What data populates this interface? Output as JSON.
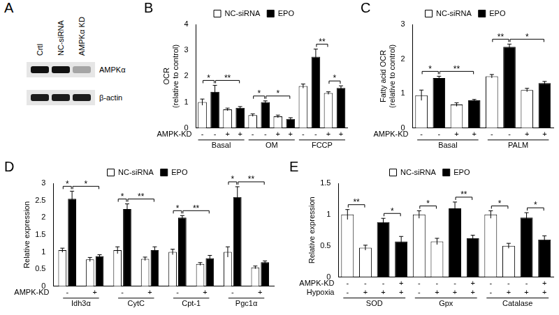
{
  "blot": {
    "title": "A",
    "lanes": [
      "Crtl",
      "NC-siRNA",
      "AMPKα KD"
    ],
    "rows": [
      "AMPKα",
      "β-actin"
    ]
  },
  "chart_data": [
    {
      "title": "B",
      "type": "bar",
      "y_label": [
        "OCR",
        "(relative to control)"
      ],
      "legend": "top",
      "grid": false,
      "categories": [
        "-",
        "-",
        "+",
        "+",
        "-",
        "-",
        "+",
        "+",
        "-",
        "-",
        "+",
        "+"
      ],
      "row_labels": [
        "AMPK-KD"
      ],
      "groups": [
        {
          "label": "Basal",
          "from": 0,
          "to": 3
        },
        {
          "label": "OM",
          "from": 4,
          "to": 7
        },
        {
          "label": "FCCP",
          "from": 8,
          "to": 11
        }
      ],
      "series": [
        {
          "name": "NC-siRNA",
          "color": "#ffffff",
          "values": [
            1.0,
            null,
            0.72,
            null,
            0.5,
            null,
            0.45,
            null,
            1.62,
            null,
            1.35,
            null
          ],
          "errors": [
            0.12,
            null,
            0.05,
            null,
            0.05,
            null,
            0.05,
            null,
            0.08,
            null,
            0.05,
            null
          ]
        },
        {
          "name": "EPO",
          "color": "#000000",
          "values": [
            null,
            1.4,
            null,
            0.78,
            null,
            1.0,
            null,
            0.35,
            null,
            2.75,
            null,
            1.55
          ],
          "errors": [
            null,
            0.25,
            null,
            0.05,
            null,
            0.05,
            null,
            0.05,
            null,
            0.3,
            null,
            0.08
          ]
        }
      ],
      "significance": [
        {
          "text": "*",
          "from": [
            0,
            0
          ],
          "to": [
            1,
            1
          ]
        },
        {
          "text": "**",
          "from": [
            1,
            1
          ],
          "to": [
            1,
            3
          ]
        },
        {
          "text": "*",
          "from": [
            0,
            4
          ],
          "to": [
            1,
            5
          ]
        },
        {
          "text": "*",
          "from": [
            1,
            5
          ],
          "to": [
            1,
            7
          ]
        },
        {
          "text": "**",
          "from": [
            1,
            9
          ],
          "to": [
            0,
            10
          ]
        },
        {
          "text": "*",
          "from": [
            0,
            10
          ],
          "to": [
            1,
            11
          ]
        }
      ],
      "ylim": [
        0,
        4
      ],
      "yticks": [
        0,
        1,
        2,
        3,
        4
      ]
    },
    {
      "title": "C",
      "type": "bar",
      "y_label": [
        "Fatty acid OCR",
        "(relative to control)"
      ],
      "legend": "top",
      "grid": false,
      "categories": [
        "-",
        "-",
        "+",
        "+",
        "-",
        "-",
        "+",
        "+"
      ],
      "row_labels": [
        "AMPK-KD"
      ],
      "groups": [
        {
          "label": "Basal",
          "from": 0,
          "to": 3
        },
        {
          "label": "PALM",
          "from": 4,
          "to": 7
        }
      ],
      "series": [
        {
          "name": "NC-siRNA",
          "color": "#ffffff",
          "values": [
            0.95,
            null,
            0.68,
            null,
            1.5,
            null,
            1.1,
            null
          ],
          "errors": [
            0.15,
            null,
            0.05,
            null,
            0.05,
            null,
            0.05,
            null
          ]
        },
        {
          "name": "EPO",
          "color": "#000000",
          "values": [
            null,
            1.45,
            null,
            0.8,
            null,
            2.35,
            null,
            1.3
          ],
          "errors": [
            null,
            0.05,
            null,
            0.03,
            null,
            0.08,
            null,
            0.05
          ]
        }
      ],
      "significance": [
        {
          "text": "*",
          "from": [
            0,
            0
          ],
          "to": [
            1,
            1
          ]
        },
        {
          "text": "**",
          "from": [
            1,
            1
          ],
          "to": [
            1,
            3
          ]
        },
        {
          "text": "**",
          "from": [
            0,
            4
          ],
          "to": [
            1,
            5
          ]
        },
        {
          "text": "*",
          "from": [
            1,
            5
          ],
          "to": [
            1,
            7
          ]
        }
      ],
      "ylim": [
        0,
        3
      ],
      "yticks": [
        0,
        1,
        2,
        3
      ]
    },
    {
      "title": "D",
      "type": "bar",
      "y_label": "Relative expression",
      "legend": "top",
      "grid": false,
      "categories": [
        "-",
        "+",
        "-",
        "+",
        "-",
        "+",
        "-",
        "+"
      ],
      "row_labels": [
        "AMPK-KD"
      ],
      "groups": [
        {
          "label": "Idh3α",
          "from": 0,
          "to": 1
        },
        {
          "label": "CytC",
          "from": 2,
          "to": 3
        },
        {
          "label": "Cpt-1",
          "from": 4,
          "to": 5
        },
        {
          "label": "Pgc1α",
          "from": 6,
          "to": 7
        }
      ],
      "series": [
        {
          "name": "NC-siRNA",
          "color": "#ffffff",
          "values": [
            1.05,
            0.78,
            1.05,
            0.8,
            1.0,
            0.65,
            1.0,
            0.55
          ],
          "errors": [
            0.06,
            0.06,
            0.1,
            0.05,
            0.08,
            0.04,
            0.15,
            0.04
          ]
        },
        {
          "name": "EPO",
          "color": "#000000",
          "values": [
            2.55,
            0.88,
            2.25,
            1.05,
            2.0,
            0.82,
            2.6,
            0.7
          ],
          "errors": [
            0.22,
            0.04,
            0.15,
            0.1,
            0.06,
            0.08,
            0.3,
            0.04
          ]
        }
      ],
      "significance": [
        {
          "text": "*",
          "from": [
            0,
            0
          ],
          "to": [
            1,
            0
          ]
        },
        {
          "text": "*",
          "from": [
            1,
            0
          ],
          "to": [
            1,
            1
          ]
        },
        {
          "text": "*",
          "from": [
            0,
            2
          ],
          "to": [
            1,
            2
          ]
        },
        {
          "text": "**",
          "from": [
            1,
            2
          ],
          "to": [
            1,
            3
          ]
        },
        {
          "text": "*",
          "from": [
            0,
            4
          ],
          "to": [
            1,
            4
          ]
        },
        {
          "text": "**",
          "from": [
            1,
            4
          ],
          "to": [
            1,
            5
          ]
        },
        {
          "text": "*",
          "from": [
            0,
            6
          ],
          "to": [
            1,
            6
          ]
        },
        {
          "text": "**",
          "from": [
            1,
            6
          ],
          "to": [
            1,
            7
          ]
        }
      ],
      "ylim": [
        0,
        3
      ],
      "yticks": [
        0,
        0.5,
        1,
        1.5,
        2,
        2.5,
        3
      ]
    },
    {
      "title": "E",
      "type": "bar",
      "y_label": "Relative expression",
      "legend": "top",
      "grid": false,
      "categories": [
        [
          "-",
          "-"
        ],
        [
          "-",
          "+"
        ],
        [
          "-",
          "+"
        ],
        [
          "+",
          "+"
        ],
        [
          "-",
          "-"
        ],
        [
          "-",
          "+"
        ],
        [
          "-",
          "+"
        ],
        [
          "+",
          "+"
        ],
        [
          "-",
          "-"
        ],
        [
          "-",
          "+"
        ],
        [
          "-",
          "+"
        ],
        [
          "+",
          "+"
        ]
      ],
      "row_labels": [
        "AMPK-KD",
        "Hypoxia"
      ],
      "groups": [
        {
          "label": "SOD",
          "from": 0,
          "to": 3
        },
        {
          "label": "Gpx",
          "from": 4,
          "to": 7
        },
        {
          "label": "Catalase",
          "from": 8,
          "to": 11
        }
      ],
      "series": [
        {
          "name": "NC-siRNA",
          "color": "#ffffff",
          "values": [
            1.0,
            0.47,
            null,
            null,
            1.0,
            0.57,
            null,
            null,
            1.0,
            0.5,
            null,
            null
          ],
          "errors": [
            0.08,
            0.04,
            null,
            null,
            0.06,
            0.05,
            null,
            null,
            0.06,
            0.04,
            null,
            null
          ]
        },
        {
          "name": "EPO",
          "color": "#000000",
          "values": [
            null,
            null,
            0.88,
            0.57,
            null,
            null,
            1.1,
            0.62,
            null,
            null,
            0.95,
            0.6
          ],
          "errors": [
            null,
            null,
            0.06,
            0.08,
            null,
            null,
            0.1,
            0.05,
            null,
            null,
            0.08,
            0.06
          ]
        }
      ],
      "significance": [
        {
          "text": "**",
          "from": [
            0,
            0
          ],
          "to": [
            0,
            1
          ]
        },
        {
          "text": "*",
          "from": [
            1,
            2
          ],
          "to": [
            1,
            3
          ]
        },
        {
          "text": "*",
          "from": [
            0,
            4
          ],
          "to": [
            0,
            5
          ]
        },
        {
          "text": "**",
          "from": [
            1,
            6
          ],
          "to": [
            1,
            7
          ]
        },
        {
          "text": "*",
          "from": [
            0,
            8
          ],
          "to": [
            0,
            9
          ]
        },
        {
          "text": "*",
          "from": [
            1,
            10
          ],
          "to": [
            1,
            11
          ]
        }
      ],
      "ylim": [
        0,
        1.5
      ],
      "yticks": [
        0,
        0.5,
        1,
        1.5
      ]
    }
  ]
}
